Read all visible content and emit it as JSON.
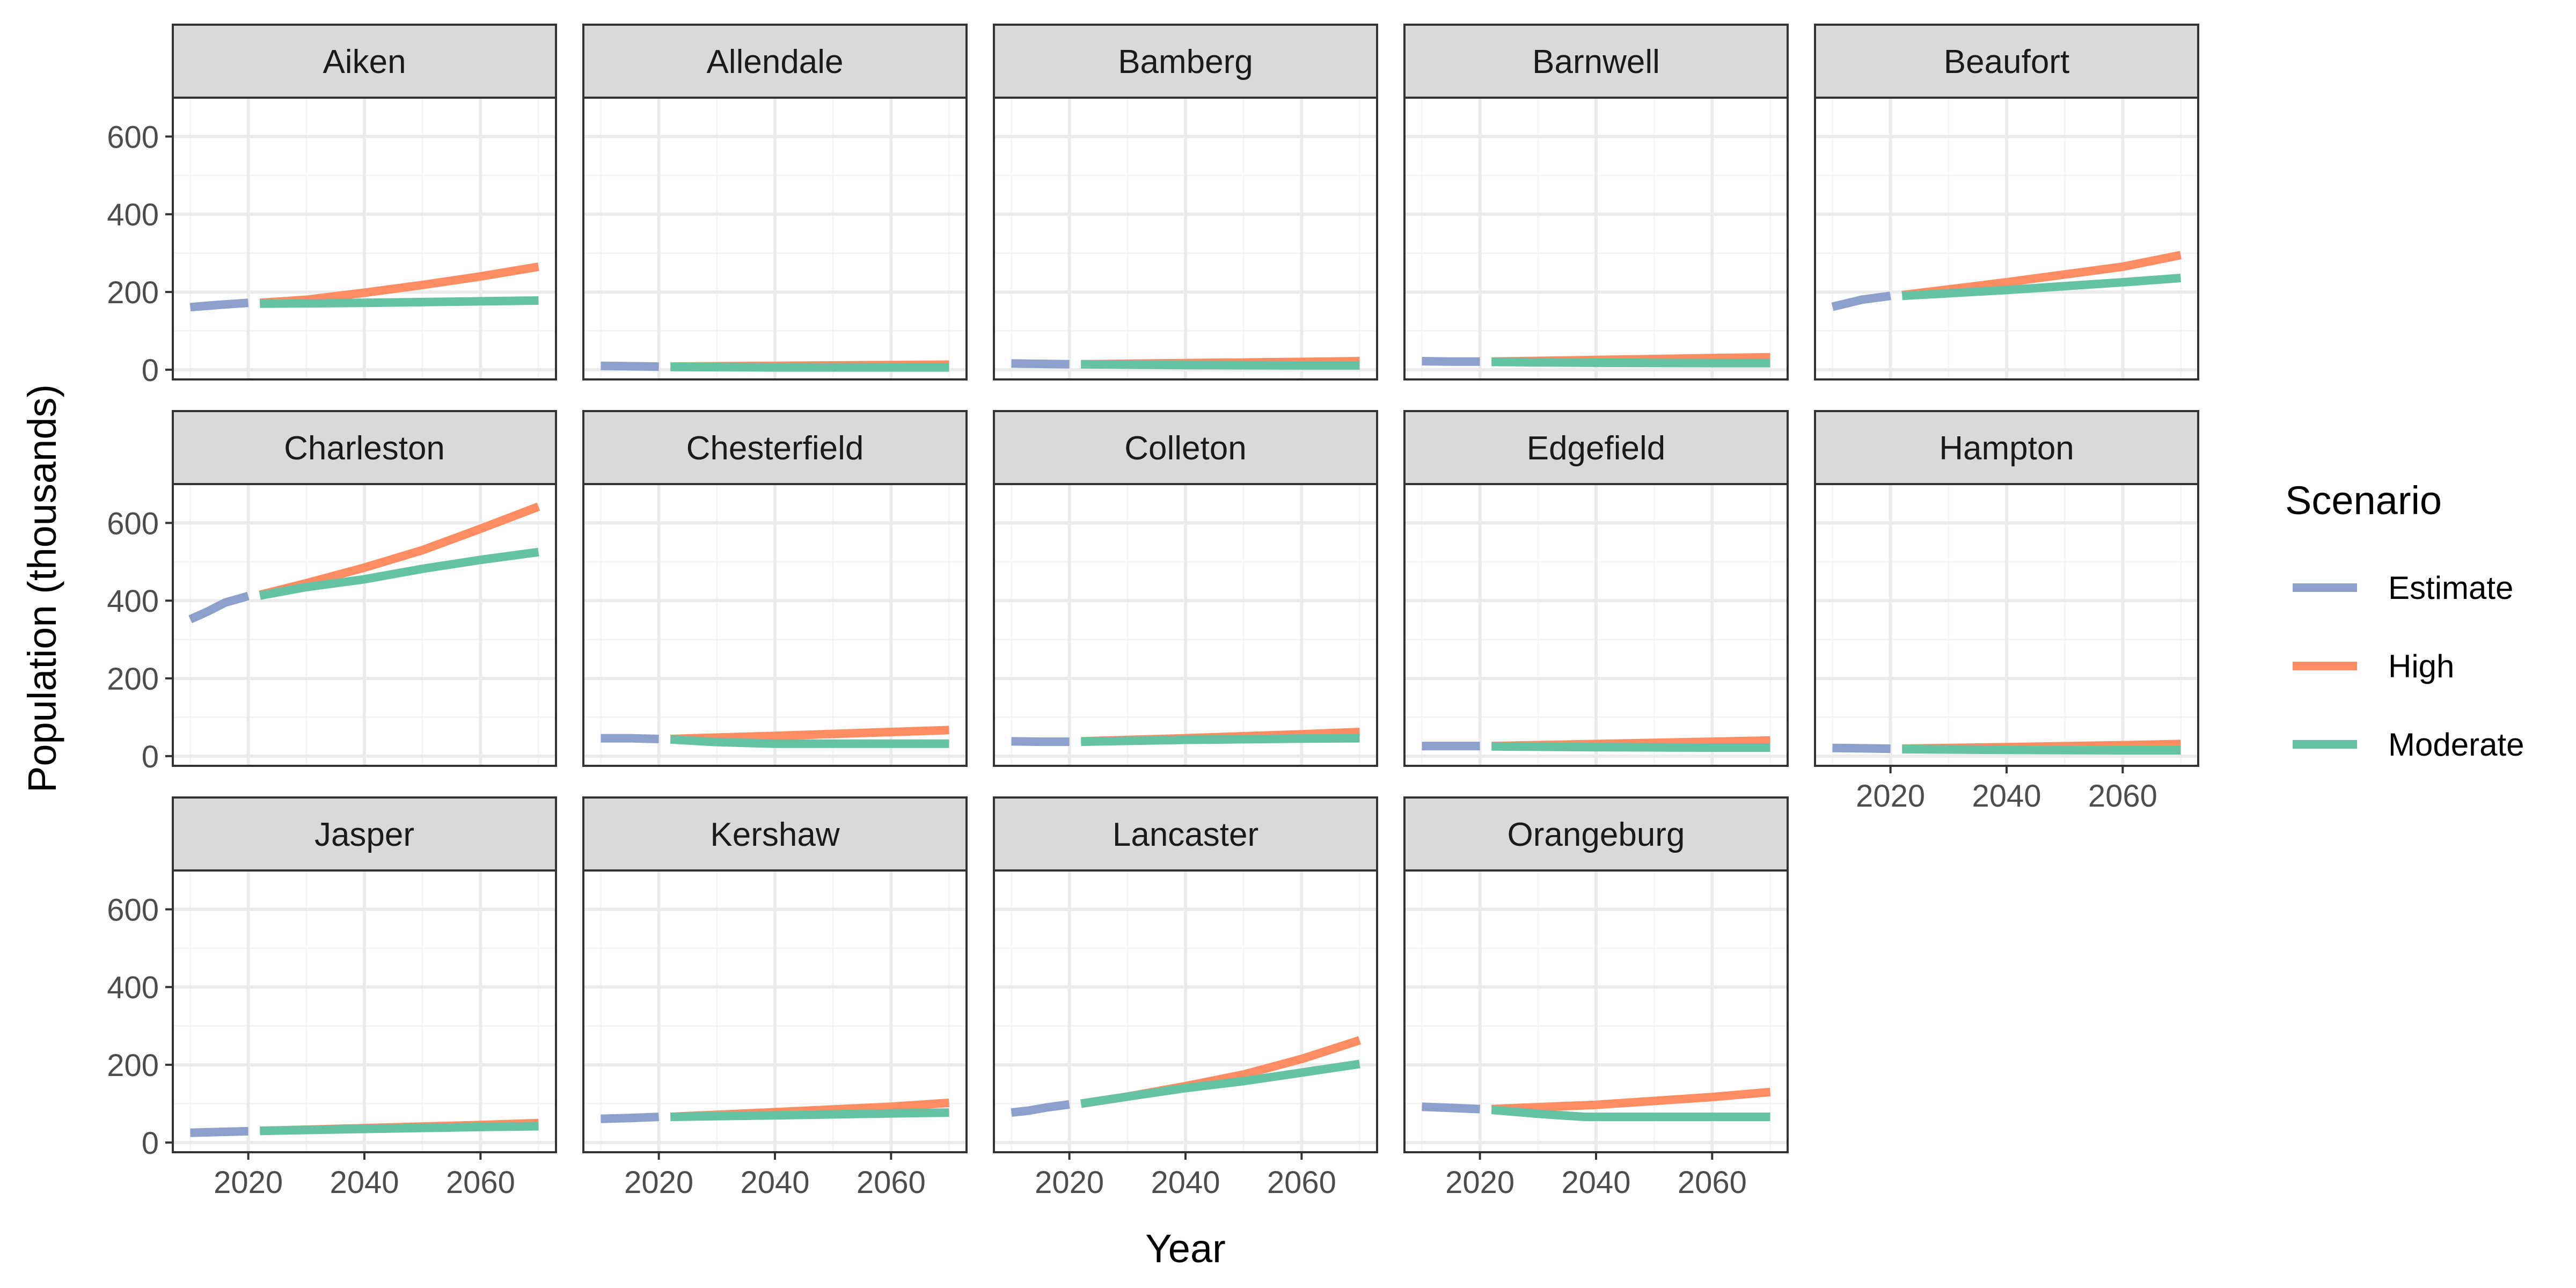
{
  "colors": {
    "estimate": "#8DA0CB",
    "high": "#FC8D62",
    "moderate": "#66C2A5",
    "strip_fill": "#D9D9D9",
    "panel_border": "#333333",
    "grid_major": "#EBEBEB",
    "grid_minor": "#F5F5F5",
    "tick_text": "#4D4D4D",
    "title_text": "#000000"
  },
  "chart_data": {
    "type": "line",
    "layout": "facet-wrap",
    "xlabel": "Year",
    "ylabel": "Population (thousands)",
    "xlim": [
      2007,
      2073
    ],
    "ylim": [
      -25,
      700
    ],
    "x_ticks": [
      2020,
      2040,
      2060
    ],
    "y_ticks": [
      0,
      200,
      400,
      600
    ],
    "grid": true,
    "legend": {
      "title": "Scenario",
      "position": "right",
      "entries": [
        {
          "key": "estimate",
          "label": "Estimate"
        },
        {
          "key": "high",
          "label": "High"
        },
        {
          "key": "moderate",
          "label": "Moderate"
        }
      ]
    },
    "panels": [
      {
        "title": "Aiken",
        "estimate": [
          [
            2010,
            161
          ],
          [
            2015,
            167
          ],
          [
            2020,
            172
          ]
        ],
        "high": [
          [
            2022,
            172
          ],
          [
            2030,
            180
          ],
          [
            2040,
            198
          ],
          [
            2050,
            218
          ],
          [
            2060,
            240
          ],
          [
            2070,
            265
          ]
        ],
        "moderate": [
          [
            2022,
            170
          ],
          [
            2030,
            171
          ],
          [
            2040,
            172
          ],
          [
            2050,
            174
          ],
          [
            2060,
            176
          ],
          [
            2070,
            178
          ]
        ]
      },
      {
        "title": "Allendale",
        "estimate": [
          [
            2010,
            10
          ],
          [
            2015,
            9
          ],
          [
            2020,
            8
          ]
        ],
        "high": [
          [
            2022,
            8
          ],
          [
            2040,
            10
          ],
          [
            2060,
            12
          ],
          [
            2070,
            13
          ]
        ],
        "moderate": [
          [
            2022,
            7
          ],
          [
            2040,
            6
          ],
          [
            2060,
            6
          ],
          [
            2070,
            6
          ]
        ]
      },
      {
        "title": "Bamberg",
        "estimate": [
          [
            2010,
            16
          ],
          [
            2015,
            15
          ],
          [
            2020,
            14
          ]
        ],
        "high": [
          [
            2022,
            14
          ],
          [
            2040,
            17
          ],
          [
            2060,
            20
          ],
          [
            2070,
            22
          ]
        ],
        "moderate": [
          [
            2022,
            14
          ],
          [
            2040,
            12
          ],
          [
            2060,
            11
          ],
          [
            2070,
            11
          ]
        ]
      },
      {
        "title": "Barnwell",
        "estimate": [
          [
            2010,
            22
          ],
          [
            2015,
            21
          ],
          [
            2020,
            21
          ]
        ],
        "high": [
          [
            2022,
            21
          ],
          [
            2040,
            25
          ],
          [
            2060,
            30
          ],
          [
            2070,
            32
          ]
        ],
        "moderate": [
          [
            2022,
            20
          ],
          [
            2040,
            18
          ],
          [
            2060,
            17
          ],
          [
            2070,
            17
          ]
        ]
      },
      {
        "title": "Beaufort",
        "estimate": [
          [
            2010,
            162
          ],
          [
            2015,
            180
          ],
          [
            2020,
            190
          ]
        ],
        "high": [
          [
            2022,
            192
          ],
          [
            2040,
            225
          ],
          [
            2060,
            265
          ],
          [
            2070,
            295
          ]
        ],
        "moderate": [
          [
            2022,
            190
          ],
          [
            2040,
            205
          ],
          [
            2060,
            225
          ],
          [
            2070,
            236
          ]
        ]
      },
      {
        "title": "Charleston",
        "estimate": [
          [
            2010,
            352
          ],
          [
            2013,
            372
          ],
          [
            2016,
            395
          ],
          [
            2020,
            412
          ]
        ],
        "high": [
          [
            2022,
            415
          ],
          [
            2030,
            445
          ],
          [
            2040,
            485
          ],
          [
            2050,
            530
          ],
          [
            2060,
            585
          ],
          [
            2070,
            642
          ]
        ],
        "moderate": [
          [
            2022,
            413
          ],
          [
            2030,
            435
          ],
          [
            2040,
            455
          ],
          [
            2050,
            482
          ],
          [
            2060,
            505
          ],
          [
            2070,
            525
          ]
        ]
      },
      {
        "title": "Chesterfield",
        "estimate": [
          [
            2010,
            46
          ],
          [
            2015,
            46
          ],
          [
            2020,
            44
          ]
        ],
        "high": [
          [
            2022,
            44
          ],
          [
            2040,
            52
          ],
          [
            2060,
            62
          ],
          [
            2070,
            67
          ]
        ],
        "moderate": [
          [
            2022,
            43
          ],
          [
            2030,
            36
          ],
          [
            2040,
            32
          ],
          [
            2060,
            32
          ],
          [
            2070,
            32
          ]
        ]
      },
      {
        "title": "Colleton",
        "estimate": [
          [
            2010,
            38
          ],
          [
            2015,
            37
          ],
          [
            2020,
            37
          ]
        ],
        "high": [
          [
            2022,
            38
          ],
          [
            2040,
            46
          ],
          [
            2060,
            56
          ],
          [
            2070,
            62
          ]
        ],
        "moderate": [
          [
            2022,
            37
          ],
          [
            2040,
            42
          ],
          [
            2060,
            45
          ],
          [
            2070,
            46
          ]
        ]
      },
      {
        "title": "Edgefield",
        "estimate": [
          [
            2010,
            26
          ],
          [
            2015,
            26
          ],
          [
            2020,
            26
          ]
        ],
        "high": [
          [
            2022,
            26
          ],
          [
            2040,
            31
          ],
          [
            2060,
            37
          ],
          [
            2070,
            40
          ]
        ],
        "moderate": [
          [
            2022,
            25
          ],
          [
            2040,
            23
          ],
          [
            2060,
            22
          ],
          [
            2070,
            22
          ]
        ]
      },
      {
        "title": "Hampton",
        "estimate": [
          [
            2010,
            21
          ],
          [
            2015,
            20
          ],
          [
            2020,
            19
          ]
        ],
        "high": [
          [
            2022,
            19
          ],
          [
            2040,
            23
          ],
          [
            2060,
            28
          ],
          [
            2070,
            31
          ]
        ],
        "moderate": [
          [
            2022,
            18
          ],
          [
            2040,
            16
          ],
          [
            2060,
            15
          ],
          [
            2070,
            15
          ]
        ]
      },
      {
        "title": "Jasper",
        "estimate": [
          [
            2010,
            25
          ],
          [
            2015,
            27
          ],
          [
            2020,
            29
          ]
        ],
        "high": [
          [
            2022,
            30
          ],
          [
            2040,
            37
          ],
          [
            2060,
            45
          ],
          [
            2070,
            50
          ]
        ],
        "moderate": [
          [
            2022,
            30
          ],
          [
            2040,
            35
          ],
          [
            2060,
            40
          ],
          [
            2070,
            42
          ]
        ]
      },
      {
        "title": "Kershaw",
        "estimate": [
          [
            2010,
            61
          ],
          [
            2015,
            63
          ],
          [
            2020,
            66
          ]
        ],
        "high": [
          [
            2022,
            66
          ],
          [
            2040,
            78
          ],
          [
            2060,
            92
          ],
          [
            2070,
            102
          ]
        ],
        "moderate": [
          [
            2022,
            66
          ],
          [
            2040,
            70
          ],
          [
            2060,
            75
          ],
          [
            2070,
            77
          ]
        ]
      },
      {
        "title": "Lancaster",
        "estimate": [
          [
            2010,
            77
          ],
          [
            2013,
            82
          ],
          [
            2016,
            90
          ],
          [
            2020,
            98
          ]
        ],
        "high": [
          [
            2022,
            100
          ],
          [
            2030,
            118
          ],
          [
            2040,
            145
          ],
          [
            2050,
            175
          ],
          [
            2060,
            215
          ],
          [
            2070,
            263
          ]
        ],
        "moderate": [
          [
            2022,
            100
          ],
          [
            2030,
            118
          ],
          [
            2040,
            140
          ],
          [
            2050,
            158
          ],
          [
            2060,
            180
          ],
          [
            2070,
            202
          ]
        ]
      },
      {
        "title": "Orangeburg",
        "estimate": [
          [
            2010,
            92
          ],
          [
            2015,
            89
          ],
          [
            2020,
            86
          ]
        ],
        "high": [
          [
            2022,
            86
          ],
          [
            2040,
            97
          ],
          [
            2060,
            117
          ],
          [
            2070,
            130
          ]
        ],
        "moderate": [
          [
            2022,
            84
          ],
          [
            2030,
            74
          ],
          [
            2038,
            66
          ],
          [
            2050,
            66
          ],
          [
            2070,
            66
          ]
        ]
      }
    ]
  }
}
